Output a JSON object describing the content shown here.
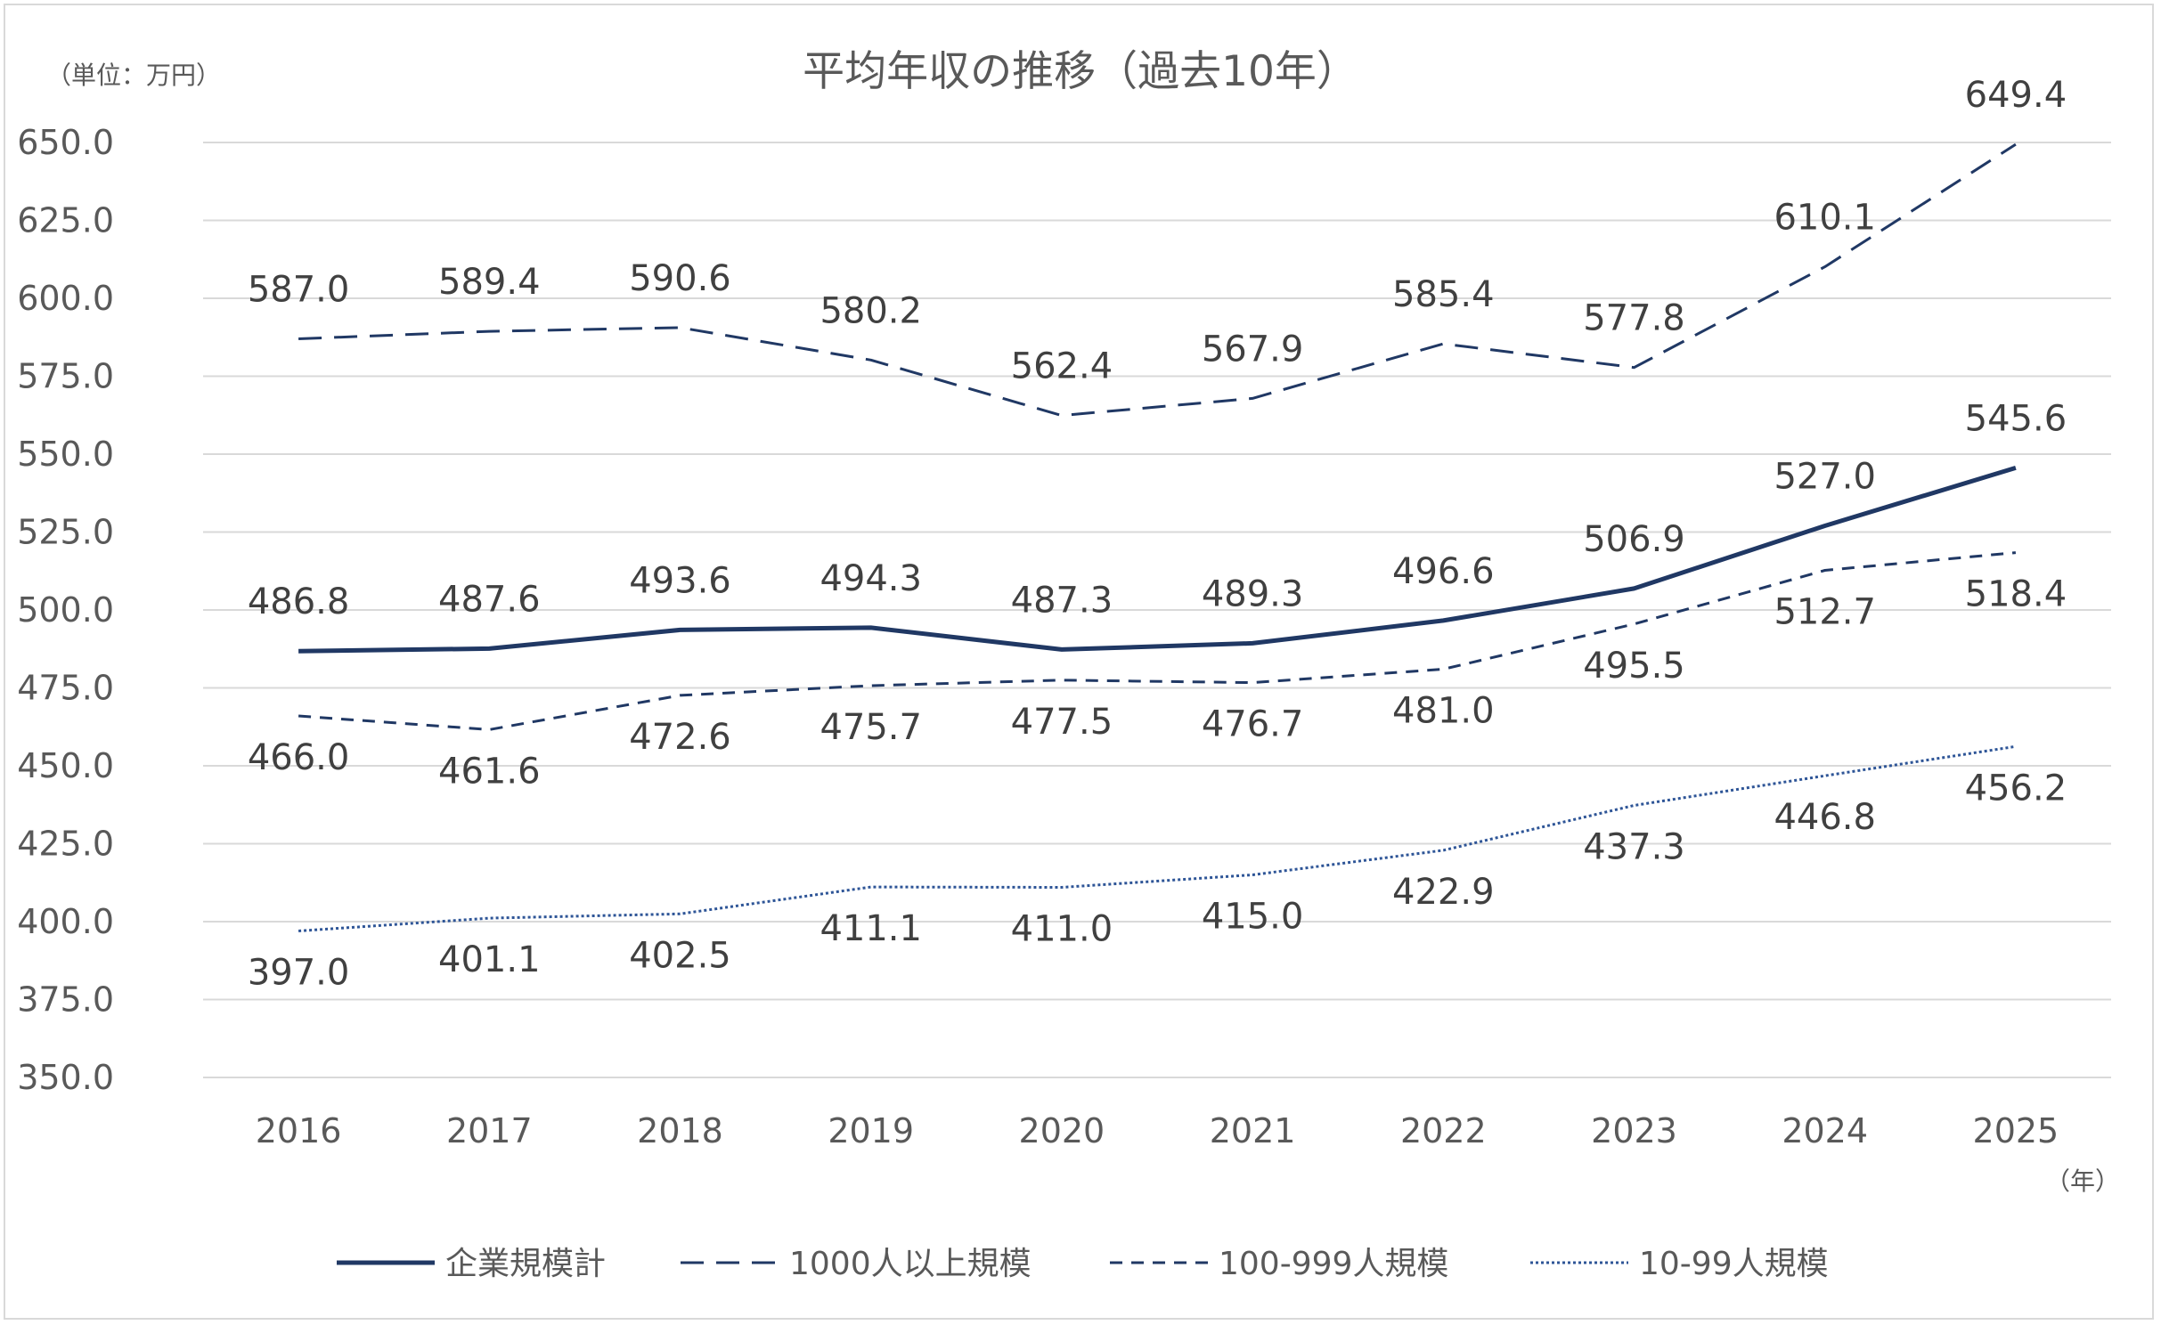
{
  "chart_data": {
    "type": "line",
    "title": "平均年収の推移（過去10年）",
    "y_unit_label": "（単位：万円）",
    "x_unit_label": "（年）",
    "categories": [
      "2016",
      "2017",
      "2018",
      "2019",
      "2020",
      "2021",
      "2022",
      "2023",
      "2024",
      "2025"
    ],
    "ylim": [
      350,
      650
    ],
    "yticks": [
      "350.0",
      "375.0",
      "400.0",
      "425.0",
      "450.0",
      "475.0",
      "500.0",
      "525.0",
      "550.0",
      "575.0",
      "600.0",
      "625.0",
      "650.0"
    ],
    "grid": true,
    "legend_position": "bottom",
    "series": [
      {
        "name": "企業規模計",
        "style": "solid",
        "color": "#203864",
        "label_position": "above",
        "values": [
          486.8,
          487.6,
          493.6,
          494.3,
          487.3,
          489.3,
          496.6,
          506.9,
          527.0,
          545.6
        ],
        "labels": [
          "486.8",
          "487.6",
          "493.6",
          "494.3",
          "487.3",
          "489.3",
          "496.6",
          "506.9",
          "527.0",
          "545.6"
        ]
      },
      {
        "name": "1000人以上規模",
        "style": "long-dash",
        "color": "#203864",
        "label_position": "above",
        "values": [
          587.0,
          589.4,
          590.6,
          580.2,
          562.4,
          567.9,
          585.4,
          577.8,
          610.1,
          649.4
        ],
        "labels": [
          "587.0",
          "589.4",
          "590.6",
          "580.2",
          "562.4",
          "567.9",
          "585.4",
          "577.8",
          "610.1",
          "649.4"
        ]
      },
      {
        "name": "100-999人規模",
        "style": "short-dash",
        "color": "#203864",
        "label_position": "below",
        "values": [
          466.0,
          461.6,
          472.6,
          475.7,
          477.5,
          476.7,
          481.0,
          495.5,
          512.7,
          518.4
        ],
        "labels": [
          "466.0",
          "461.6",
          "472.6",
          "475.7",
          "477.5",
          "476.7",
          "481.0",
          "495.5",
          "512.7",
          "518.4"
        ]
      },
      {
        "name": "10-99人規模",
        "style": "dotted",
        "color": "#2e5597",
        "label_position": "below",
        "values": [
          397.0,
          401.1,
          402.5,
          411.1,
          411.0,
          415.0,
          422.9,
          437.3,
          446.8,
          456.2
        ],
        "labels": [
          "397.0",
          "401.1",
          "402.5",
          "411.1",
          "411.0",
          "415.0",
          "422.9",
          "437.3",
          "446.8",
          "456.2"
        ]
      }
    ]
  }
}
